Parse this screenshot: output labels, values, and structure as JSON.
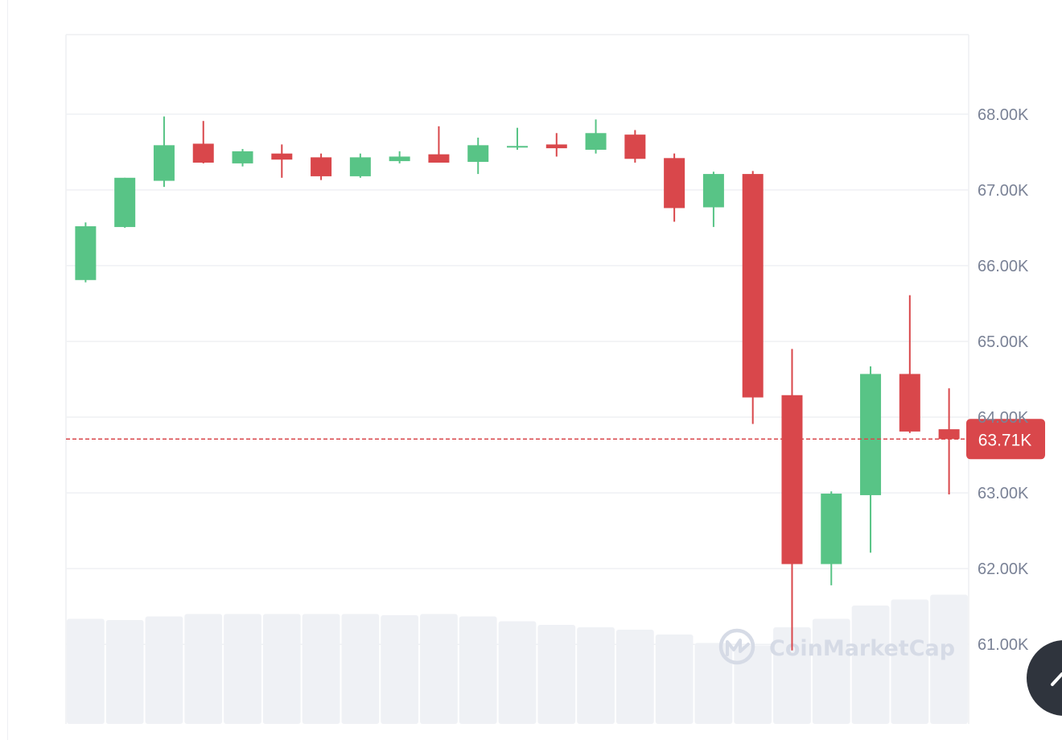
{
  "chart_data": {
    "type": "candlestick",
    "title": "",
    "xlabel": "",
    "ylabel": "",
    "ylim": [
      59950,
      69050
    ],
    "y_ticks": [
      {
        "value": 68000,
        "label": "68.00K"
      },
      {
        "value": 67000,
        "label": "67.00K"
      },
      {
        "value": 66000,
        "label": "66.00K"
      },
      {
        "value": 65000,
        "label": "65.00K"
      },
      {
        "value": 64000,
        "label": "64.00K"
      },
      {
        "value": 63000,
        "label": "63.00K"
      },
      {
        "value": 62000,
        "label": "62.00K"
      },
      {
        "value": 61000,
        "label": "61.00K"
      }
    ],
    "candles": [
      {
        "open": 65810,
        "high": 66570,
        "low": 65780,
        "close": 66520
      },
      {
        "open": 66510,
        "high": 67160,
        "low": 66500,
        "close": 67160
      },
      {
        "open": 67120,
        "high": 67970,
        "low": 67040,
        "close": 67590
      },
      {
        "open": 67610,
        "high": 67910,
        "low": 67350,
        "close": 67360
      },
      {
        "open": 67350,
        "high": 67540,
        "low": 67310,
        "close": 67510
      },
      {
        "open": 67480,
        "high": 67600,
        "low": 67160,
        "close": 67400
      },
      {
        "open": 67430,
        "high": 67480,
        "low": 67130,
        "close": 67180
      },
      {
        "open": 67180,
        "high": 67480,
        "low": 67160,
        "close": 67430
      },
      {
        "open": 67380,
        "high": 67510,
        "low": 67350,
        "close": 67440
      },
      {
        "open": 67470,
        "high": 67840,
        "low": 67370,
        "close": 67360
      },
      {
        "open": 67370,
        "high": 67690,
        "low": 67210,
        "close": 67590
      },
      {
        "open": 67570,
        "high": 67820,
        "low": 67530,
        "close": 67580
      },
      {
        "open": 67600,
        "high": 67750,
        "low": 67440,
        "close": 67550
      },
      {
        "open": 67530,
        "high": 67930,
        "low": 67480,
        "close": 67750
      },
      {
        "open": 67730,
        "high": 67790,
        "low": 67360,
        "close": 67410
      },
      {
        "open": 67420,
        "high": 67480,
        "low": 66580,
        "close": 66760
      },
      {
        "open": 66770,
        "high": 67240,
        "low": 66510,
        "close": 67210
      },
      {
        "open": 67210,
        "high": 67250,
        "low": 63910,
        "close": 64260
      },
      {
        "open": 64290,
        "high": 64900,
        "low": 60920,
        "close": 62060
      },
      {
        "open": 62060,
        "high": 63020,
        "low": 61780,
        "close": 62990
      },
      {
        "open": 62970,
        "high": 64670,
        "low": 62210,
        "close": 64570
      },
      {
        "open": 64570,
        "high": 65610,
        "low": 63790,
        "close": 63810
      },
      {
        "open": 63840,
        "high": 64380,
        "low": 62980,
        "close": 63710
      }
    ],
    "volume": [
      0.87,
      0.86,
      0.89,
      0.91,
      0.91,
      0.91,
      0.91,
      0.91,
      0.9,
      0.91,
      0.89,
      0.85,
      0.82,
      0.8,
      0.78,
      0.74,
      0.67,
      0.65,
      0.8,
      0.87,
      0.98,
      1.03,
      1.07
    ],
    "last_price": {
      "value": 63710,
      "label": "63.71K"
    },
    "watermark": "CoinMarketCap",
    "colors": {
      "up": "#58c486",
      "down": "#d9474b",
      "grid": "#eff1f4",
      "axis_text": "#7a8296",
      "volume": "#eff1f5",
      "price_badge": "#d9474b"
    }
  }
}
